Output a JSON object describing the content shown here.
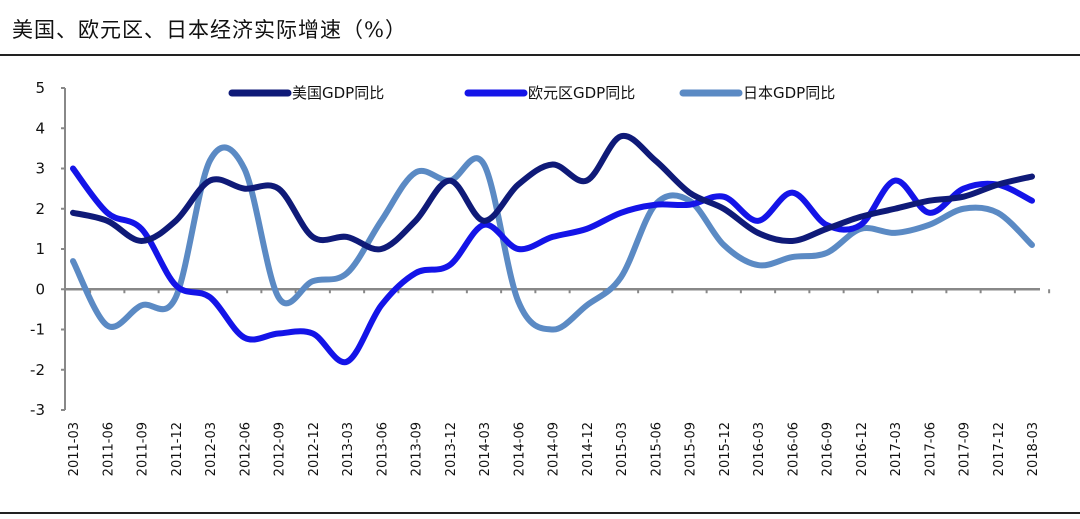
{
  "chart_data": {
    "type": "line",
    "title": "美国、欧元区、日本经济实际增速（%）",
    "xlabel": "",
    "ylabel": "",
    "ylim": [
      -3,
      5
    ],
    "yticks": [
      5,
      4,
      3,
      2,
      1,
      0,
      -1,
      -2,
      -3
    ],
    "grid": false,
    "legend_position": "top",
    "categories": [
      "2011-03",
      "2011-06",
      "2011-09",
      "2011-12",
      "2012-03",
      "2012-06",
      "2012-09",
      "2012-12",
      "2013-03",
      "2013-06",
      "2013-09",
      "2013-12",
      "2014-03",
      "2014-06",
      "2014-09",
      "2014-12",
      "2015-03",
      "2015-06",
      "2015-09",
      "2015-12",
      "2016-03",
      "2016-06",
      "2016-09",
      "2016-12",
      "2017-03",
      "2017-06",
      "2017-09",
      "2017-12",
      "2018-03"
    ],
    "series": [
      {
        "name": "美国GDP同比",
        "color": "#0f1a78",
        "values": [
          1.9,
          1.7,
          1.2,
          1.7,
          2.7,
          2.5,
          2.5,
          1.3,
          1.3,
          1.0,
          1.7,
          2.7,
          1.7,
          2.6,
          3.1,
          2.7,
          3.8,
          3.2,
          2.4,
          2.0,
          1.4,
          1.2,
          1.5,
          1.8,
          2.0,
          2.2,
          2.3,
          2.6,
          2.8
        ]
      },
      {
        "name": "欧元区GDP同比",
        "color": "#1414e8",
        "values": [
          3.0,
          1.9,
          1.5,
          0.1,
          -0.2,
          -1.2,
          -1.1,
          -1.1,
          -1.8,
          -0.4,
          0.4,
          0.6,
          1.6,
          1.0,
          1.3,
          1.5,
          1.9,
          2.1,
          2.1,
          2.3,
          1.7,
          2.4,
          1.6,
          1.6,
          2.7,
          1.9,
          2.5,
          2.6,
          2.2
        ]
      },
      {
        "name": "日本GDP同比",
        "color": "#5b8ac4",
        "values": [
          0.7,
          -0.9,
          -0.4,
          -0.2,
          3.2,
          3.0,
          -0.2,
          0.2,
          0.4,
          1.7,
          2.9,
          2.7,
          3.1,
          -0.3,
          -1.0,
          -0.4,
          0.3,
          2.1,
          2.2,
          1.1,
          0.6,
          0.8,
          0.9,
          1.5,
          1.4,
          1.6,
          2.0,
          1.9,
          1.1
        ]
      }
    ]
  }
}
